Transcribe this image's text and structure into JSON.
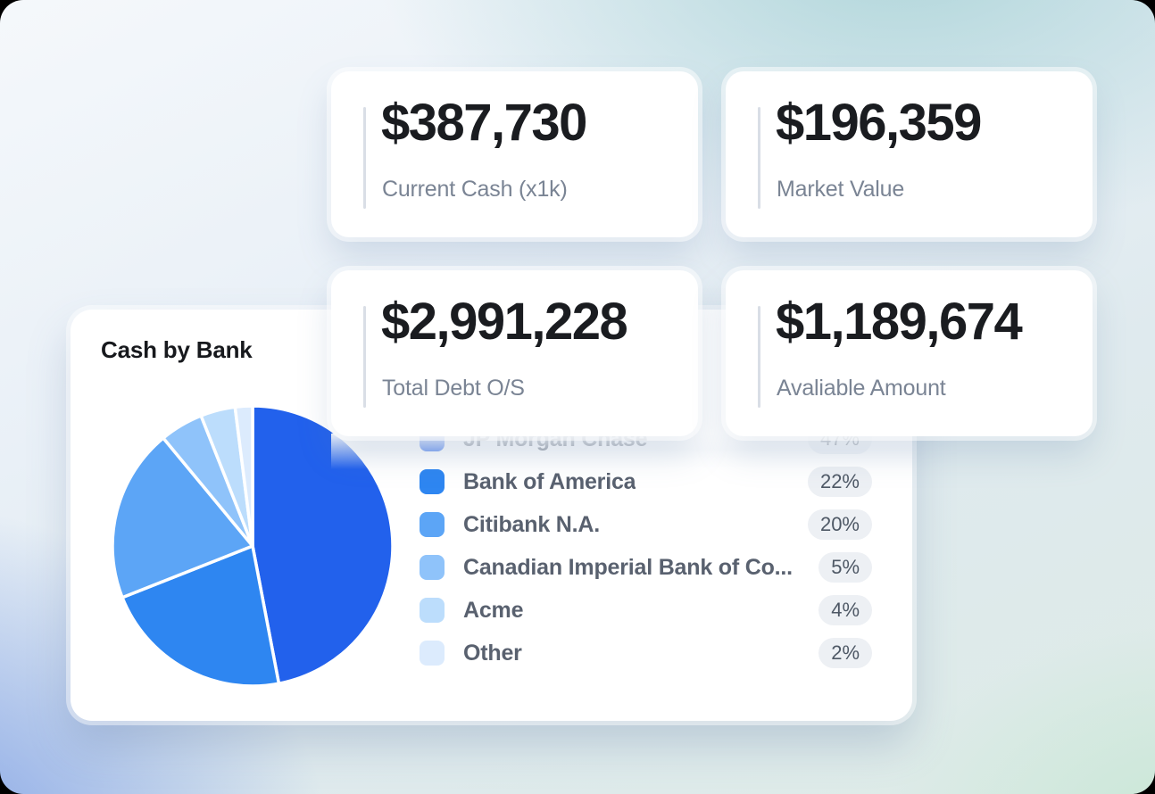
{
  "stat_cards": [
    {
      "id": "current-cash",
      "value": "$387,730",
      "label": "Current Cash (x1k)"
    },
    {
      "id": "market-value",
      "value": "$196,359",
      "label": "Market Value"
    },
    {
      "id": "total-debt",
      "value": "$2,991,228",
      "label": "Total Debt O/S"
    },
    {
      "id": "available-amount",
      "value": "$1,189,674",
      "label": "Avaliable Amount"
    }
  ],
  "cash_card": {
    "title": "Cash by Bank"
  },
  "chart_data": {
    "type": "pie",
    "title": "Cash by Bank",
    "categories": [
      "JP Morgan Chase",
      "Bank of America",
      "Citibank N.A.",
      "Canadian Imperial Bank of Co...",
      "Acme",
      "Other"
    ],
    "values": [
      47,
      22,
      20,
      5,
      4,
      2
    ],
    "value_labels": [
      "47%",
      "22%",
      "20%",
      "5%",
      "4%",
      "2%"
    ],
    "colors": [
      "#2261EC",
      "#2E86F1",
      "#5CA5F6",
      "#8FC3FA",
      "#BCDDFC",
      "#DCEBFD"
    ],
    "total": 100,
    "start_angle_deg": 0,
    "direction": "clockwise",
    "legend_position": "right",
    "slice_separator_color": "#FFFFFF"
  },
  "theme": {
    "accent_line": "#D9DEE6",
    "pill_bg": "#EDF0F4",
    "card_bg": "#FFFFFF"
  }
}
